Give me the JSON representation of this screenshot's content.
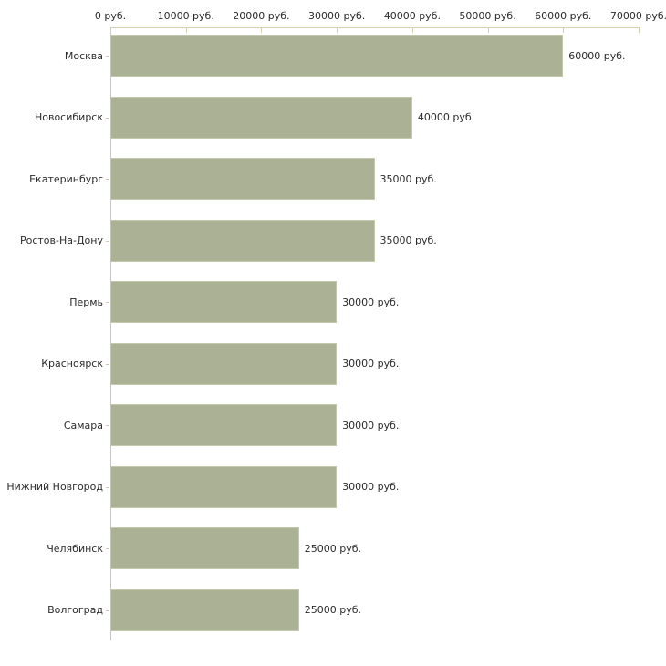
{
  "chart_data": {
    "type": "bar",
    "orientation": "horizontal",
    "title": "",
    "unit": "руб.",
    "categories": [
      "Москва",
      "Новосибирск",
      "Екатеринбург",
      "Ростов-На-Дону",
      "Пермь",
      "Красноярск",
      "Самара",
      "Нижний Новгород",
      "Челябинск",
      "Волгоград"
    ],
    "values": [
      60000,
      40000,
      35000,
      35000,
      30000,
      30000,
      30000,
      30000,
      25000,
      25000
    ],
    "value_labels": [
      "60000 руб.",
      "40000 руб.",
      "35000 руб.",
      "35000 руб.",
      "30000 руб.",
      "30000 руб.",
      "30000 руб.",
      "30000 руб.",
      "25000 руб.",
      "25000 руб."
    ],
    "x_ticks": [
      0,
      10000,
      20000,
      30000,
      40000,
      50000,
      60000,
      70000
    ],
    "x_tick_labels": [
      "0 руб.",
      "10000 руб.",
      "20000 руб.",
      "30000 руб.",
      "40000 руб.",
      "50000 руб.",
      "60000 руб.",
      "70000 руб."
    ],
    "xlim": [
      0,
      70000
    ],
    "grid": false,
    "legend": false,
    "colors": {
      "bar_fill": "#aab194",
      "bar_border": "#c3c9ab",
      "x_axis_line": "#d4d0ae",
      "x_tick_mark": "#d4d0ae",
      "y_axis_line": "#c6c6c6",
      "category_tick": "#ccc9ad",
      "text": "#2b2b2b",
      "background": "#ffffff"
    }
  }
}
